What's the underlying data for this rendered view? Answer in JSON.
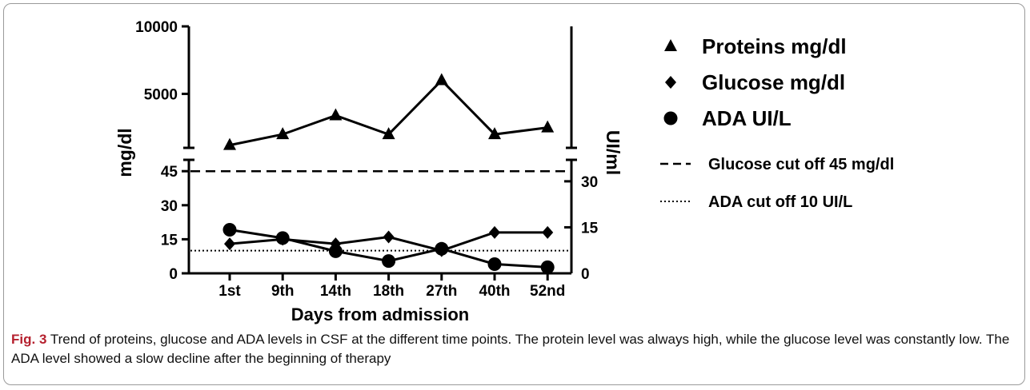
{
  "caption": {
    "label": "Fig. 3",
    "text": "Trend of proteins, glucose and ADA levels in CSF at the different time points. The protein level was always high, while the glucose level was constantly low. The ADA level showed a slow decline after the beginning of therapy"
  },
  "chart_data": {
    "type": "line",
    "xlabel": "Days from admission",
    "ylabel_left": "mg/dl",
    "ylabel_right": "UI/ml",
    "categories": [
      "1st",
      "9th",
      "14th",
      "18th",
      "27th",
      "40th",
      "52nd"
    ],
    "y_left_upper": {
      "ticks": [
        "5000",
        "10000"
      ],
      "range": [
        1000,
        10000
      ]
    },
    "y_left_lower": {
      "ticks": [
        "0",
        "15",
        "30",
        "45"
      ],
      "range": [
        0,
        50
      ]
    },
    "y_right": {
      "ticks": [
        "0",
        "15",
        "30"
      ],
      "range": [
        0,
        37
      ]
    },
    "series": [
      {
        "name": "Proteins mg/dl",
        "marker": "triangle",
        "axis": "left-upper",
        "values": [
          1200,
          2000,
          3400,
          2000,
          6000,
          2000,
          2500
        ]
      },
      {
        "name": "Glucose mg/dl",
        "marker": "diamond",
        "axis": "left-lower",
        "values": [
          13,
          15,
          13,
          16,
          10,
          18,
          18
        ]
      },
      {
        "name": "ADA UI/L",
        "marker": "circle",
        "axis": "right",
        "values": [
          14.2,
          11.5,
          7.2,
          4.0,
          8.0,
          3.0,
          2.0
        ]
      }
    ],
    "reference_lines": [
      {
        "name": "Glucose cut off 45 mg/dl",
        "style": "dashed",
        "axis": "left-lower",
        "value": 45
      },
      {
        "name": "ADA cut off 10 UI/L",
        "style": "dotted",
        "axis": "left-lower",
        "value": 10
      }
    ],
    "legend_position": "right",
    "grid": false
  }
}
